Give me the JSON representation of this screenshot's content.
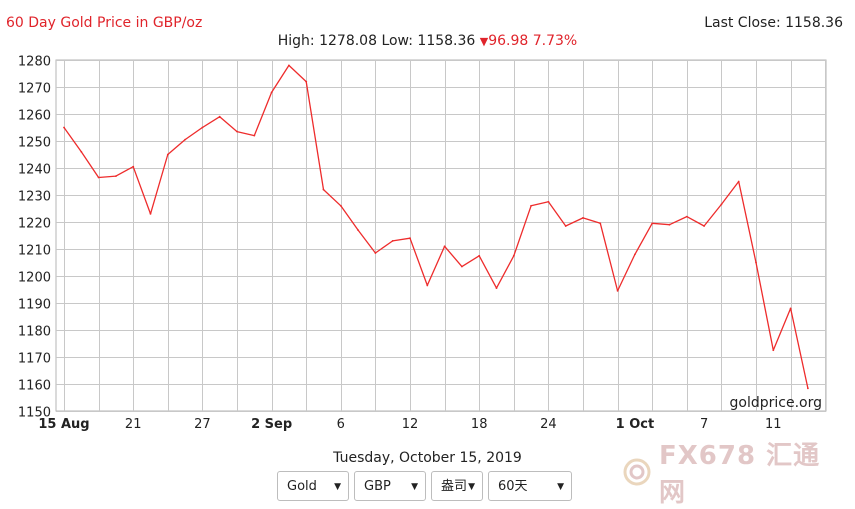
{
  "header": {
    "title": "60 Day Gold Price in GBP/oz",
    "last_close_label": "Last Close: 1158.36",
    "high_low_text": "High: 1278.08 Low: 1158.36",
    "change_text": "96.98 7.73%"
  },
  "footer": {
    "date": "Tuesday, October 15, 2019",
    "watermark_brand": "goldprice.org",
    "corner_watermark_text": "FX678 汇通网"
  },
  "controls": {
    "metal": "Gold",
    "currency": "GBP",
    "unit": "盎司",
    "range": "60天"
  },
  "colors": {
    "line": "#ee2c2c",
    "title": "#e0242b",
    "grid": "#c8c8c8"
  },
  "chart_data": {
    "type": "line",
    "title": "60 Day Gold Price in GBP/oz",
    "xlabel": "",
    "ylabel": "",
    "ylim": [
      1150,
      1280
    ],
    "yticks": [
      1150,
      1160,
      1170,
      1180,
      1190,
      1200,
      1210,
      1220,
      1230,
      1240,
      1250,
      1260,
      1270,
      1280
    ],
    "grid": true,
    "x_tick_labels": [
      {
        "label": "15 Aug",
        "index": 0,
        "bold": true
      },
      {
        "label": "21",
        "index": 4,
        "bold": false
      },
      {
        "label": "27",
        "index": 8,
        "bold": false
      },
      {
        "label": "2 Sep",
        "index": 12,
        "bold": true
      },
      {
        "label": "6",
        "index": 16,
        "bold": false
      },
      {
        "label": "12",
        "index": 20,
        "bold": false
      },
      {
        "label": "18",
        "index": 24,
        "bold": false
      },
      {
        "label": "24",
        "index": 28,
        "bold": false
      },
      {
        "label": "1 Oct",
        "index": 33,
        "bold": true
      },
      {
        "label": "7",
        "index": 37,
        "bold": false
      },
      {
        "label": "11",
        "index": 41,
        "bold": false
      }
    ],
    "series": [
      {
        "values": [
          1255,
          1246,
          1236.5,
          1237,
          1240.5,
          1223,
          1245,
          1250.5,
          1255,
          1259,
          1253.5,
          1252,
          1268,
          1278,
          1272,
          1232,
          1226,
          1217,
          1208.5,
          1213,
          1214,
          1196.5,
          1211,
          1203.5,
          1207.5,
          1195.5,
          1207.5,
          1226,
          1227.5,
          1218.5,
          1221.5,
          1219.5,
          1194.5,
          1208,
          1219.5,
          1219,
          1222,
          1218.5,
          1226.5,
          1235,
          1205,
          1172.5,
          1188,
          1158.4
        ]
      }
    ]
  }
}
